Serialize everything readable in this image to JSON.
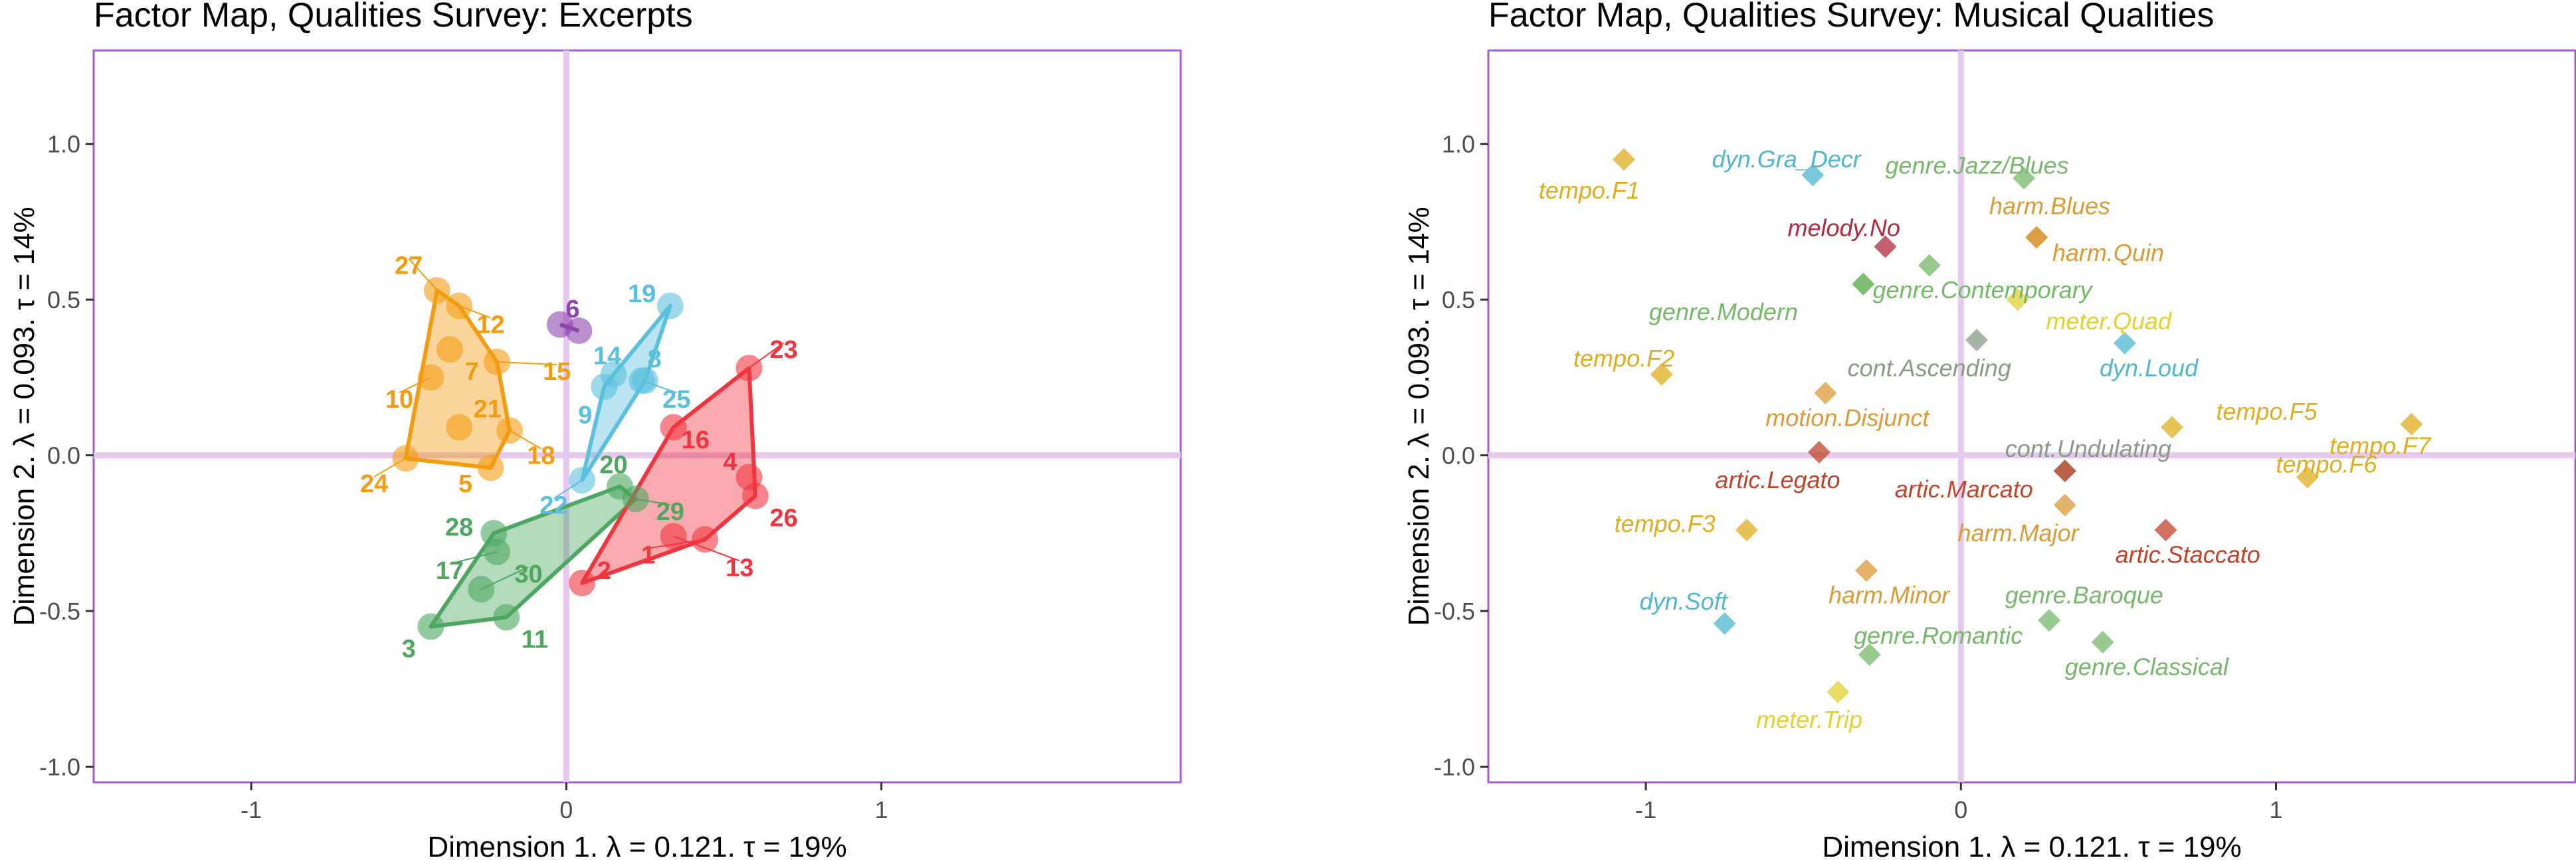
{
  "chart_data": [
    {
      "type": "scatter",
      "title": "Factor Map, Qualities Survey: Excerpts",
      "xlabel": "Dimension 1.   λ = 0.121.  τ = 19%",
      "ylabel": "Dimension 2.  λ = 0.093.  τ = 14%",
      "xlim": [
        -1.5,
        1.95
      ],
      "ylim": [
        -1.05,
        1.3
      ],
      "xticks": [
        -1,
        0,
        1
      ],
      "yticks": [
        -1.0,
        -0.5,
        0.0,
        0.5,
        1.0
      ],
      "xtick_labels": [
        "-1",
        "0",
        "1"
      ],
      "ytick_labels": [
        "-1.0",
        "-0.5",
        "0.0",
        "0.5",
        "1.0"
      ],
      "grid": false,
      "groups": [
        {
          "color": "#f39c12",
          "points": [
            {
              "label": "27",
              "x": -0.41,
              "y": 0.53,
              "lx": -0.5,
              "ly": 0.61
            },
            {
              "label": "12",
              "x": -0.34,
              "y": 0.48,
              "lx": -0.24,
              "ly": 0.42
            },
            {
              "label": "7",
              "x": -0.37,
              "y": 0.34,
              "lx": -0.3,
              "ly": 0.27
            },
            {
              "label": "15",
              "x": -0.22,
              "y": 0.3,
              "lx": -0.03,
              "ly": 0.27
            },
            {
              "label": "10",
              "x": -0.43,
              "y": 0.25,
              "lx": -0.53,
              "ly": 0.18
            },
            {
              "label": "21",
              "x": -0.34,
              "y": 0.09,
              "lx": -0.25,
              "ly": 0.15
            },
            {
              "label": "18",
              "x": -0.18,
              "y": 0.08,
              "lx": -0.08,
              "ly": 0.0
            },
            {
              "label": "24",
              "x": -0.51,
              "y": -0.01,
              "lx": -0.61,
              "ly": -0.09
            },
            {
              "label": "5",
              "x": -0.24,
              "y": -0.04,
              "lx": -0.32,
              "ly": -0.09
            }
          ],
          "hull": [
            [
              -0.41,
              0.53
            ],
            [
              -0.34,
              0.48
            ],
            [
              -0.22,
              0.3
            ],
            [
              -0.18,
              0.08
            ],
            [
              -0.24,
              -0.04
            ],
            [
              -0.51,
              -0.01
            ]
          ]
        },
        {
          "color": "#8e44ad",
          "points": [
            {
              "label": "6",
              "x": -0.02,
              "y": 0.42,
              "lx": 0.02,
              "ly": 0.47
            },
            {
              "label": "",
              "x": 0.04,
              "y": 0.4,
              "lx": 0.04,
              "ly": 0.4
            }
          ],
          "hull": [
            [
              -0.02,
              0.42
            ],
            [
              0.04,
              0.4
            ]
          ]
        },
        {
          "color": "#5bc0de",
          "points": [
            {
              "label": "19",
              "x": 0.33,
              "y": 0.48,
              "lx": 0.24,
              "ly": 0.52
            },
            {
              "label": "14",
              "x": 0.15,
              "y": 0.26,
              "lx": 0.13,
              "ly": 0.32
            },
            {
              "label": "8",
              "x": 0.25,
              "y": 0.24,
              "lx": 0.28,
              "ly": 0.31
            },
            {
              "label": "9",
              "x": 0.12,
              "y": 0.22,
              "lx": 0.06,
              "ly": 0.13
            },
            {
              "label": "25",
              "x": 0.24,
              "y": 0.24,
              "lx": 0.35,
              "ly": 0.18
            },
            {
              "label": "22",
              "x": 0.05,
              "y": -0.08,
              "lx": -0.04,
              "ly": -0.16
            }
          ],
          "hull": [
            [
              0.33,
              0.48
            ],
            [
              0.25,
              0.24
            ],
            [
              0.05,
              -0.08
            ],
            [
              0.12,
              0.22
            ],
            [
              0.15,
              0.26
            ]
          ]
        },
        {
          "color": "#4da760",
          "points": [
            {
              "label": "20",
              "x": 0.17,
              "y": -0.1,
              "lx": 0.15,
              "ly": -0.03
            },
            {
              "label": "29",
              "x": 0.22,
              "y": -0.14,
              "lx": 0.33,
              "ly": -0.18
            },
            {
              "label": "28",
              "x": -0.23,
              "y": -0.25,
              "lx": -0.34,
              "ly": -0.23
            },
            {
              "label": "17",
              "x": -0.22,
              "y": -0.31,
              "lx": -0.37,
              "ly": -0.37
            },
            {
              "label": "30",
              "x": -0.27,
              "y": -0.43,
              "lx": -0.12,
              "ly": -0.38
            },
            {
              "label": "3",
              "x": -0.43,
              "y": -0.55,
              "lx": -0.5,
              "ly": -0.62
            },
            {
              "label": "11",
              "x": -0.19,
              "y": -0.52,
              "lx": -0.1,
              "ly": -0.59
            }
          ],
          "hull": [
            [
              0.17,
              -0.1
            ],
            [
              0.22,
              -0.14
            ],
            [
              -0.19,
              -0.52
            ],
            [
              -0.43,
              -0.55
            ],
            [
              -0.23,
              -0.25
            ]
          ]
        },
        {
          "color": "#f0353f",
          "points": [
            {
              "label": "23",
              "x": 0.58,
              "y": 0.28,
              "lx": 0.69,
              "ly": 0.34
            },
            {
              "label": "16",
              "x": 0.34,
              "y": 0.09,
              "lx": 0.41,
              "ly": 0.05
            },
            {
              "label": "4",
              "x": 0.58,
              "y": -0.07,
              "lx": 0.52,
              "ly": -0.02
            },
            {
              "label": "26",
              "x": 0.6,
              "y": -0.13,
              "lx": 0.69,
              "ly": -0.2
            },
            {
              "label": "1",
              "x": 0.44,
              "y": -0.27,
              "lx": 0.26,
              "ly": -0.32
            },
            {
              "label": "13",
              "x": 0.34,
              "y": -0.26,
              "lx": 0.55,
              "ly": -0.36
            },
            {
              "label": "2",
              "x": 0.05,
              "y": -0.41,
              "lx": 0.12,
              "ly": -0.37
            }
          ],
          "hull": [
            [
              0.58,
              0.28
            ],
            [
              0.6,
              -0.13
            ],
            [
              0.44,
              -0.27
            ],
            [
              0.05,
              -0.41
            ],
            [
              0.34,
              0.09
            ]
          ]
        }
      ]
    },
    {
      "type": "scatter",
      "title": "Factor Map, Qualities Survey: Musical Qualities",
      "xlabel": "Dimension 1.   λ = 0.121.  τ = 19%",
      "ylabel": "Dimension 2.  λ = 0.093.  τ = 14%",
      "xlim": [
        -1.5,
        1.95
      ],
      "ylim": [
        -1.05,
        1.3
      ],
      "xticks": [
        -1,
        0,
        1
      ],
      "yticks": [
        -1.0,
        -0.5,
        0.0,
        0.5,
        1.0
      ],
      "xtick_labels": [
        "-1",
        "0",
        "1"
      ],
      "ytick_labels": [
        "-1.0",
        "-0.5",
        "0.0",
        "0.5",
        "1.0"
      ],
      "grid": false,
      "points": [
        {
          "label": "tempo.F1",
          "x": -1.07,
          "y": 0.95,
          "lx": -1.34,
          "ly": 0.85,
          "color": "#dfae1e"
        },
        {
          "label": "dyn.Gra_Decr",
          "x": -0.47,
          "y": 0.9,
          "lx": -0.79,
          "ly": 0.95,
          "color": "#4fb6cd"
        },
        {
          "label": "genre.Jazz/Blues",
          "x": 0.2,
          "y": 0.89,
          "lx": -0.24,
          "ly": 0.93,
          "color": "#76b86a"
        },
        {
          "label": "harm.Blues",
          "x": 0.24,
          "y": 0.7,
          "lx": 0.09,
          "ly": 0.8,
          "color": "#d99a37"
        },
        {
          "label": "harm.Quin",
          "x": 0.24,
          "y": 0.7,
          "lx": 0.29,
          "ly": 0.65,
          "color": "#d99a37"
        },
        {
          "label": "melody.No",
          "x": -0.24,
          "y": 0.67,
          "lx": -0.55,
          "ly": 0.73,
          "color": "#b02a3e"
        },
        {
          "label": "",
          "x": -0.1,
          "y": 0.61,
          "lx": -0.1,
          "ly": 0.61,
          "color": "#76b86a"
        },
        {
          "label": "genre.Modern",
          "x": -0.31,
          "y": 0.55,
          "lx": -0.99,
          "ly": 0.46,
          "color": "#76b86a"
        },
        {
          "label": "genre.Contemporary",
          "x": -0.31,
          "y": 0.55,
          "lx": -0.28,
          "ly": 0.53,
          "color": "#76b86a"
        },
        {
          "label": "meter.Quad",
          "x": 0.18,
          "y": 0.5,
          "lx": 0.27,
          "ly": 0.43,
          "color": "#e3d02e"
        },
        {
          "label": "cont.Ascending",
          "x": 0.05,
          "y": 0.37,
          "lx": -0.36,
          "ly": 0.28,
          "color": "#8a9a86"
        },
        {
          "label": "dyn.Loud",
          "x": 0.52,
          "y": 0.36,
          "lx": 0.44,
          "ly": 0.28,
          "color": "#4fb6cd"
        },
        {
          "label": "tempo.F2",
          "x": -0.95,
          "y": 0.26,
          "lx": -1.23,
          "ly": 0.31,
          "color": "#dfae1e"
        },
        {
          "label": "motion.Disjunct",
          "x": -0.43,
          "y": 0.2,
          "lx": -0.62,
          "ly": 0.12,
          "color": "#d99a37"
        },
        {
          "label": "tempo.F5",
          "x": 0.67,
          "y": 0.09,
          "lx": 0.81,
          "ly": 0.14,
          "color": "#dfae1e"
        },
        {
          "label": "tempo.F7",
          "x": 1.43,
          "y": 0.1,
          "lx": 1.17,
          "ly": 0.03,
          "color": "#dfae1e"
        },
        {
          "label": "tempo.F6",
          "x": 1.1,
          "y": -0.07,
          "lx": 1.0,
          "ly": -0.03,
          "color": "#dfae1e"
        },
        {
          "label": "cont.Undulating",
          "x": 0.33,
          "y": -0.05,
          "lx": 0.14,
          "ly": 0.02,
          "color": "#8a9a86"
        },
        {
          "label": "artic.Legato",
          "x": -0.45,
          "y": 0.01,
          "lx": -0.78,
          "ly": -0.08,
          "color": "#c0432a"
        },
        {
          "label": "artic.Marcato",
          "x": 0.33,
          "y": -0.05,
          "lx": -0.21,
          "ly": -0.11,
          "color": "#c0432a"
        },
        {
          "label": "harm.Major",
          "x": 0.33,
          "y": -0.16,
          "lx": -0.01,
          "ly": -0.25,
          "color": "#d99a37"
        },
        {
          "label": "artic.Staccato",
          "x": 0.65,
          "y": -0.24,
          "lx": 0.49,
          "ly": -0.32,
          "color": "#c0432a"
        },
        {
          "label": "tempo.F3",
          "x": -0.68,
          "y": -0.24,
          "lx": -1.1,
          "ly": -0.22,
          "color": "#dfae1e"
        },
        {
          "label": "harm.Minor",
          "x": -0.3,
          "y": -0.37,
          "lx": -0.42,
          "ly": -0.45,
          "color": "#d99a37"
        },
        {
          "label": "genre.Baroque",
          "x": 0.28,
          "y": -0.53,
          "lx": 0.14,
          "ly": -0.45,
          "color": "#76b86a"
        },
        {
          "label": "dyn.Soft",
          "x": -0.75,
          "y": -0.54,
          "lx": -1.02,
          "ly": -0.47,
          "color": "#4fb6cd"
        },
        {
          "label": "genre.Romantic",
          "x": -0.29,
          "y": -0.64,
          "lx": -0.34,
          "ly": -0.58,
          "color": "#76b86a"
        },
        {
          "label": "genre.Classical",
          "x": 0.45,
          "y": -0.6,
          "lx": 0.33,
          "ly": -0.68,
          "color": "#76b86a"
        },
        {
          "label": "meter.Trip",
          "x": -0.39,
          "y": -0.76,
          "lx": -0.65,
          "ly": -0.85,
          "color": "#e3d02e"
        }
      ]
    }
  ]
}
